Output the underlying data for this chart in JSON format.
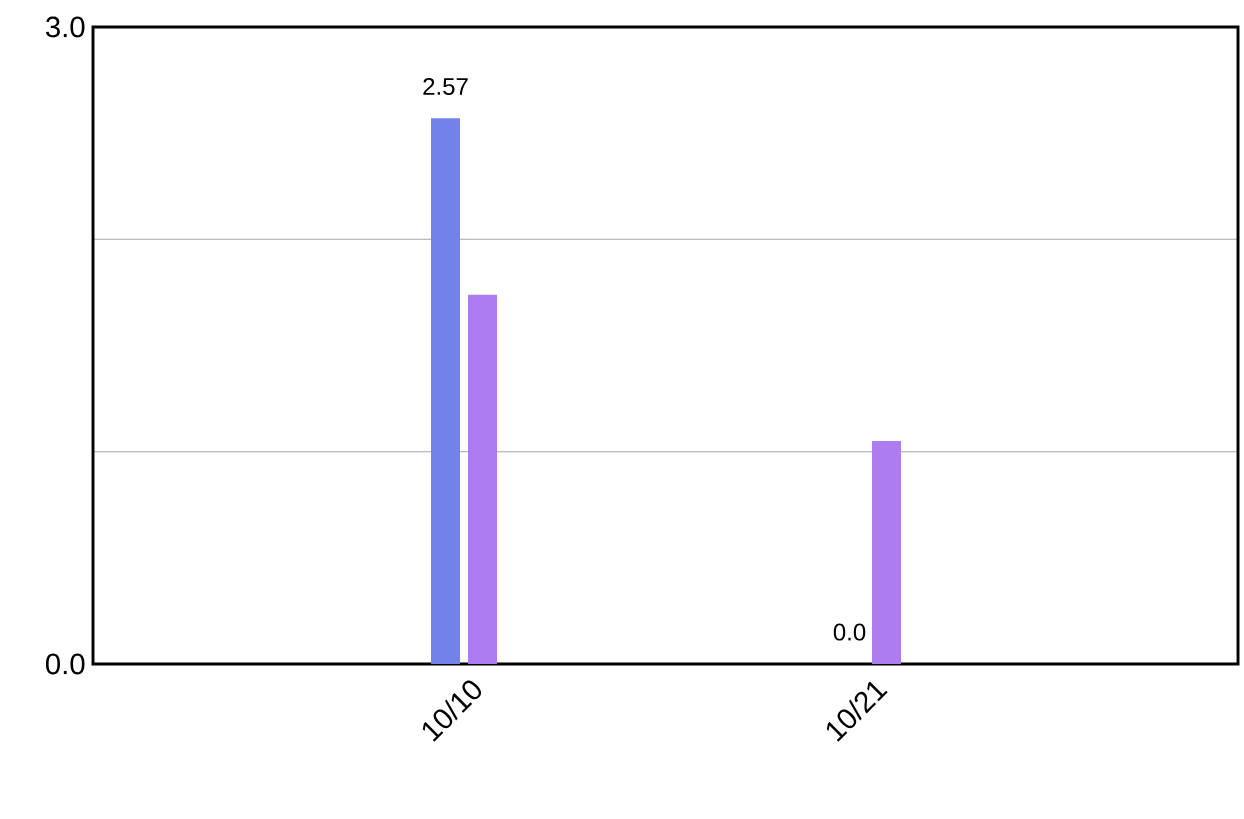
{
  "chart_data": {
    "type": "bar",
    "categories": [
      "10/10",
      "10/21"
    ],
    "series": [
      {
        "color": "#7382ea",
        "values": [
          2.57,
          0.0
        ],
        "value_labels": [
          "2.57",
          "0.0"
        ]
      },
      {
        "color": "#ad7cf0",
        "values": [
          1.74,
          1.05
        ],
        "value_labels": [
          null,
          null
        ]
      }
    ],
    "ylim": [
      0,
      3
    ],
    "yticks": [
      {
        "value": 0,
        "label": "0.0"
      },
      {
        "value": 1,
        "label": null
      },
      {
        "value": 2,
        "label": null
      },
      {
        "value": 3,
        "label": "3.0"
      }
    ],
    "grid": "y"
  }
}
